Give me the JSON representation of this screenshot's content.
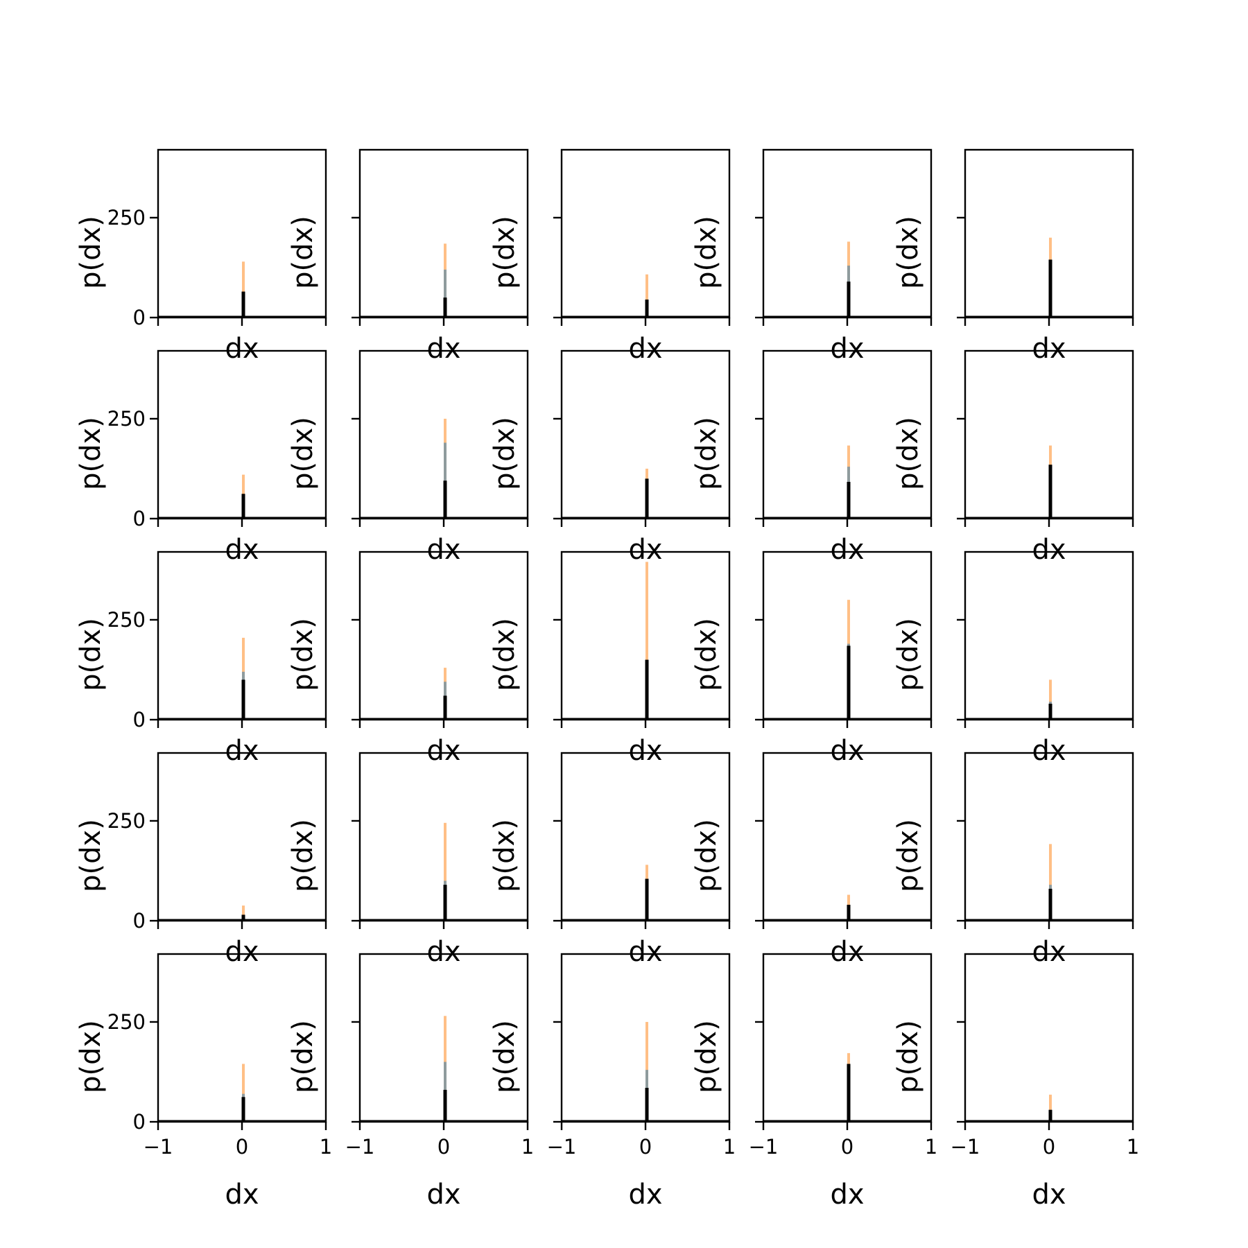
{
  "chart_data": {
    "type": "bar",
    "layout": {
      "rows": 5,
      "cols": 5
    },
    "xlabel": "dx",
    "ylabel": "p(dx)",
    "xlim": [
      -1,
      1
    ],
    "ylim": [
      0,
      420
    ],
    "xticks": [
      -1,
      0,
      1
    ],
    "xtick_labels": [
      "−1",
      "0",
      "1"
    ],
    "yticks": [
      0,
      250
    ],
    "ytick_labels": [
      "0",
      "250"
    ],
    "colors": {
      "orange": "#ff7f0e",
      "blue": "#1f77b4",
      "black": "#000000"
    },
    "series": [
      "orange",
      "blue",
      "black"
    ],
    "panels": [
      {
        "orange": 140,
        "blue": 40,
        "black": 65
      },
      {
        "orange": 185,
        "blue": 120,
        "black": 50
      },
      {
        "orange": 108,
        "blue": 30,
        "black": 45
      },
      {
        "orange": 190,
        "blue": 130,
        "black": 90
      },
      {
        "orange": 200,
        "blue": 140,
        "black": 145
      },
      {
        "orange": 110,
        "blue": 50,
        "black": 62
      },
      {
        "orange": 250,
        "blue": 190,
        "black": 95
      },
      {
        "orange": 125,
        "blue": 90,
        "black": 100
      },
      {
        "orange": 183,
        "blue": 130,
        "black": 92
      },
      {
        "orange": 183,
        "blue": 110,
        "black": 135
      },
      {
        "orange": 205,
        "blue": 120,
        "black": 100
      },
      {
        "orange": 130,
        "blue": 95,
        "black": 60
      },
      {
        "orange": 395,
        "blue": 100,
        "black": 150
      },
      {
        "orange": 300,
        "blue": 190,
        "black": 185
      },
      {
        "orange": 100,
        "blue": 45,
        "black": 40
      },
      {
        "orange": 38,
        "blue": 10,
        "black": 15
      },
      {
        "orange": 245,
        "blue": 100,
        "black": 90
      },
      {
        "orange": 140,
        "blue": 70,
        "black": 105
      },
      {
        "orange": 65,
        "blue": 30,
        "black": 40
      },
      {
        "orange": 192,
        "blue": 90,
        "black": 80
      },
      {
        "orange": 145,
        "blue": 70,
        "black": 62
      },
      {
        "orange": 265,
        "blue": 150,
        "black": 80
      },
      {
        "orange": 250,
        "blue": 130,
        "black": 85
      },
      {
        "orange": 172,
        "blue": 120,
        "black": 145
      },
      {
        "orange": 68,
        "blue": 30,
        "black": 30
      }
    ]
  }
}
